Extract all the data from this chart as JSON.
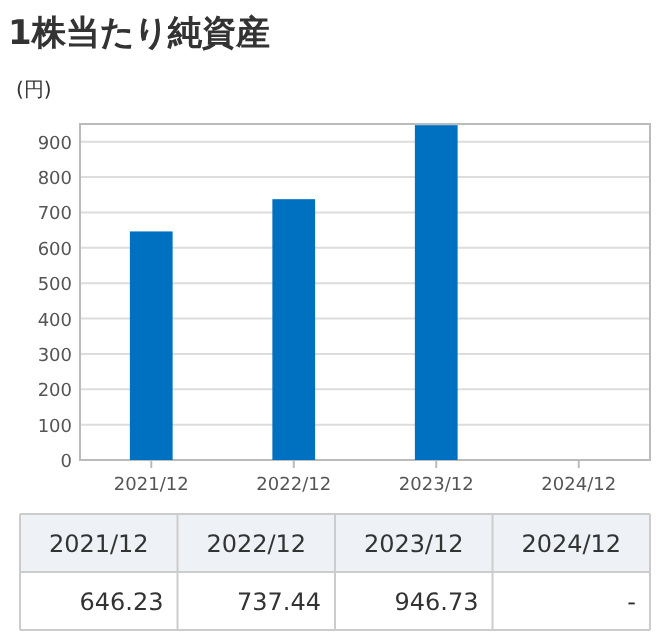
{
  "chart_data": {
    "type": "bar",
    "title": "1株当たり純資産",
    "ylabel": "(円)",
    "categories": [
      "2021/12",
      "2022/12",
      "2023/12",
      "2024/12"
    ],
    "values": [
      646.23,
      737.44,
      946.73,
      null
    ],
    "value_labels": [
      "646.23",
      "737.44",
      "946.73",
      "-"
    ],
    "color": "#0070c0",
    "ylim": [
      0,
      950
    ],
    "yticks": [
      0,
      100,
      200,
      300,
      400,
      500,
      600,
      700,
      800,
      900
    ],
    "grid": "y"
  }
}
